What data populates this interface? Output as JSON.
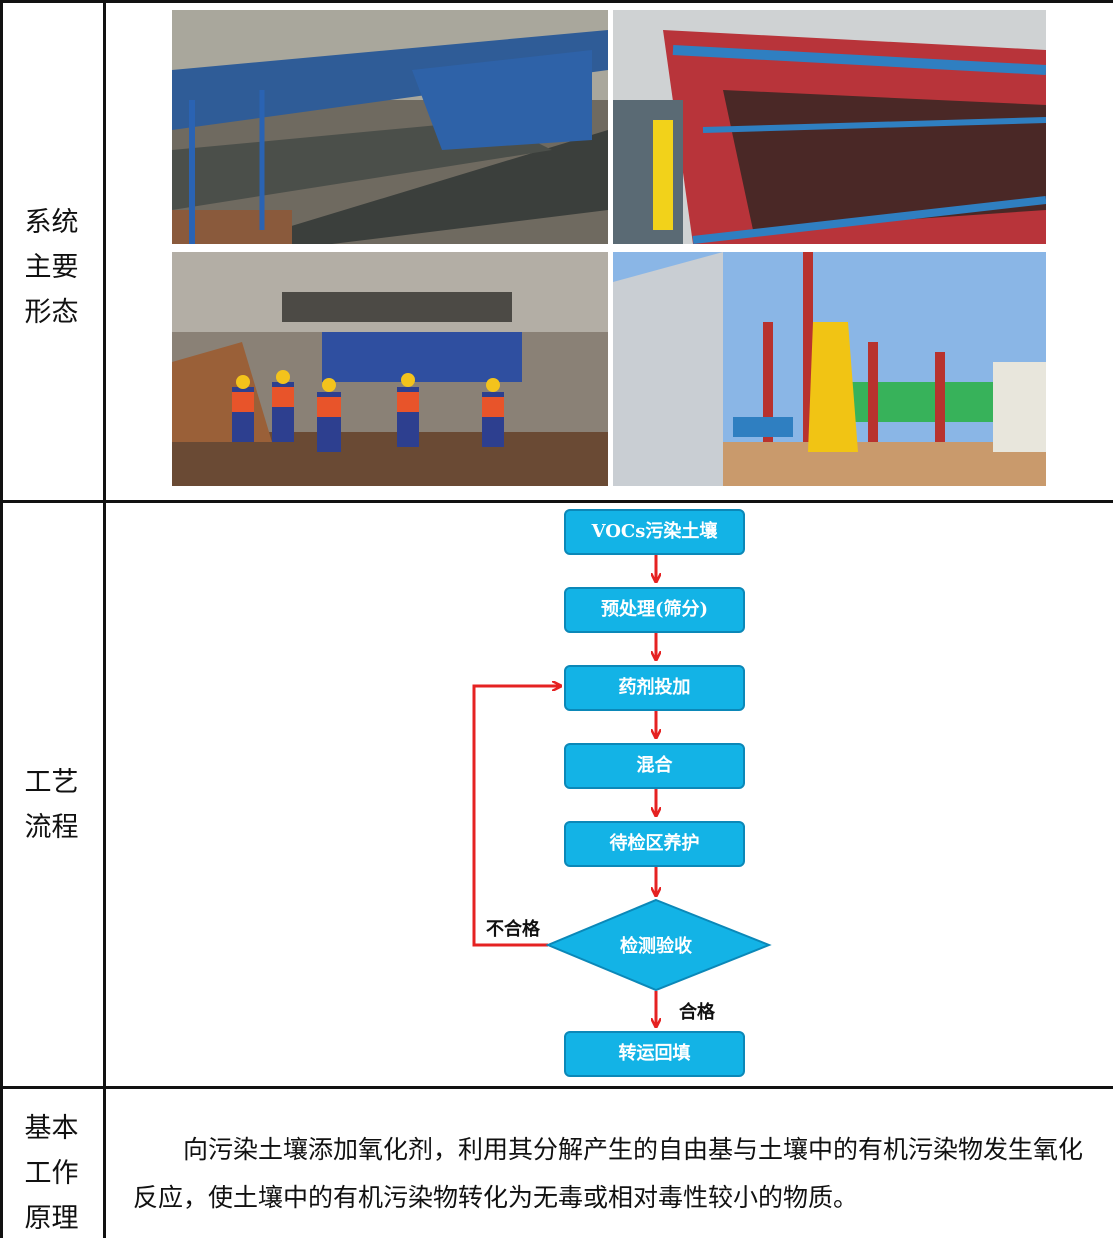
{
  "rows": {
    "system_label": [
      "系统",
      "主要",
      "形态"
    ],
    "process_label": [
      "工艺",
      "流程"
    ],
    "principle_label": [
      "基本",
      "工作",
      "原理"
    ]
  },
  "photos": [
    "conveyor-belt-photo",
    "screening-machine-photo",
    "mixing-plant-workers-photo",
    "treatment-site-chimneys-photo"
  ],
  "flowchart": {
    "steps": [
      "VOCs污染土壤",
      "预处理(筛分)",
      "药剂投加",
      "混合",
      "待检区养护"
    ],
    "decision": "检测验收",
    "fail_label": "不合格",
    "pass_label": "合格",
    "final_step": "转运回填",
    "colors": {
      "box": "#13b3e6",
      "arrow": "#e52222"
    }
  },
  "principle_text": "向污染土壤添加氧化剂，利用其分解产生的自由基与土壤中的有机污染物发生氧化反应，使土壤中的有机污染物转化为无毒或相对毒性较小的物质。"
}
